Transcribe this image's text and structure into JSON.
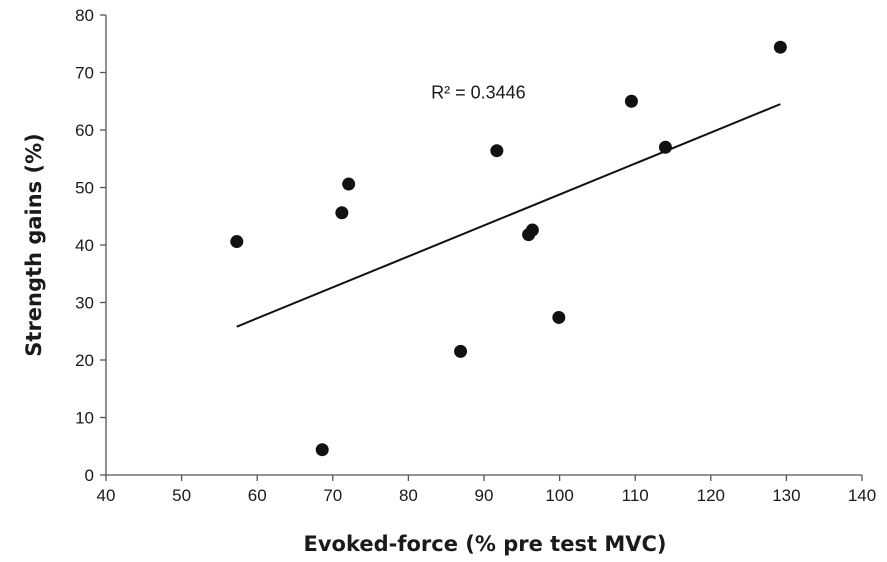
{
  "chart_data": {
    "type": "scatter",
    "xlabel": "Evoked-force (% pre test MVC)",
    "ylabel": "Strength gains (%)",
    "xlim": [
      40,
      140
    ],
    "ylim": [
      0,
      80
    ],
    "xticks": [
      40,
      50,
      60,
      70,
      80,
      90,
      100,
      110,
      120,
      130,
      140
    ],
    "yticks": [
      0,
      10,
      20,
      30,
      40,
      50,
      60,
      70,
      80
    ],
    "grid": false,
    "legend": "none",
    "series": [
      {
        "color": "#111111",
        "x": [
          57.3,
          68.6,
          71.2,
          72.1,
          86.9,
          91.7,
          95.9,
          96.4,
          99.9,
          109.5,
          114.0,
          129.2
        ],
        "y": [
          40.6,
          4.4,
          45.6,
          50.6,
          21.5,
          56.4,
          41.8,
          42.6,
          27.4,
          65.0,
          57.0,
          74.4
        ]
      }
    ],
    "trendline": {
      "type": "linear",
      "x": [
        57.3,
        129.2
      ],
      "y": [
        25.8,
        64.5
      ],
      "color": "#111111"
    },
    "annotations": [
      {
        "text": "R² = 0.3446",
        "x": 83,
        "y": 65.5
      }
    ]
  }
}
